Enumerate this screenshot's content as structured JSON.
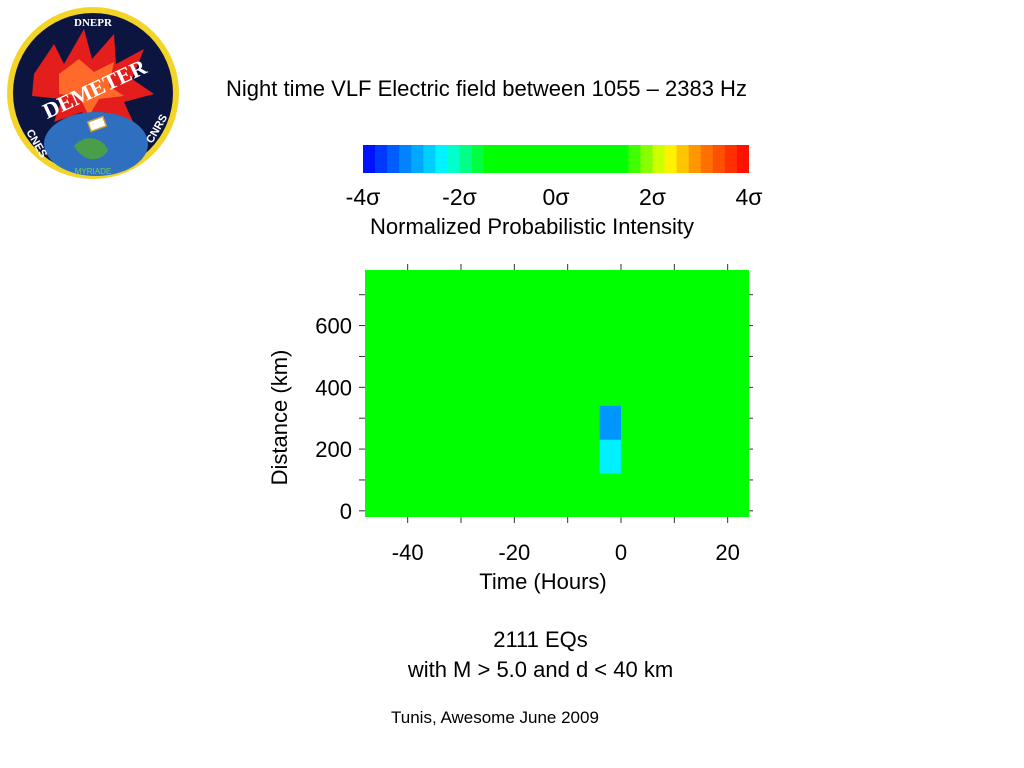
{
  "logo": {
    "top_text": "DNEPR",
    "name": "DEMETER",
    "left_text": "CNES",
    "right_text": "CNRS",
    "bottom_text": "MYRIADE"
  },
  "title": "Night time VLF Electric field between 1055 – 2383 Hz",
  "colorbar": {
    "tick_labels": [
      "-4σ",
      "-2σ",
      "0σ",
      "2σ",
      "4σ"
    ],
    "tick_values": [
      -4,
      -2,
      0,
      2,
      4
    ],
    "range": [
      -4,
      4
    ],
    "label": "Normalized Probabilistic Intensity",
    "colors": [
      "#0000ff",
      "#00a0ff",
      "#00ffff",
      "#00ff00",
      "#ffff00",
      "#ff8000",
      "#ff0000"
    ]
  },
  "chart_data": {
    "type": "heatmap",
    "xlabel": "Time (Hours)",
    "ylabel": "Distance (km)",
    "xlim": [
      -48,
      24
    ],
    "ylim": [
      -20,
      780
    ],
    "x_ticks": [
      -40,
      -20,
      0,
      20
    ],
    "y_ticks": [
      0,
      200,
      400,
      600
    ],
    "background_value": 0,
    "cells": [
      {
        "x0": -28,
        "x1": -24,
        "y0": 560,
        "y1": 670,
        "value": -0.6
      },
      {
        "x0": -4,
        "x1": 0,
        "y0": 340,
        "y1": 450,
        "value": -0.8
      },
      {
        "x0": -4,
        "x1": 0,
        "y0": 230,
        "y1": 340,
        "value": -3.0
      },
      {
        "x0": -4,
        "x1": 0,
        "y0": 120,
        "y1": 230,
        "value": -2.4
      },
      {
        "x0": -4,
        "x1": 0,
        "y0": -20,
        "y1": 120,
        "value": -1.4
      },
      {
        "x0": 20,
        "x1": 24,
        "y0": 120,
        "y1": 230,
        "value": -0.7
      }
    ]
  },
  "caption": {
    "line1": "2111 EQs",
    "line2": "with M > 5.0 and d < 40 km"
  },
  "credit": "Tunis, Awesome June 2009"
}
